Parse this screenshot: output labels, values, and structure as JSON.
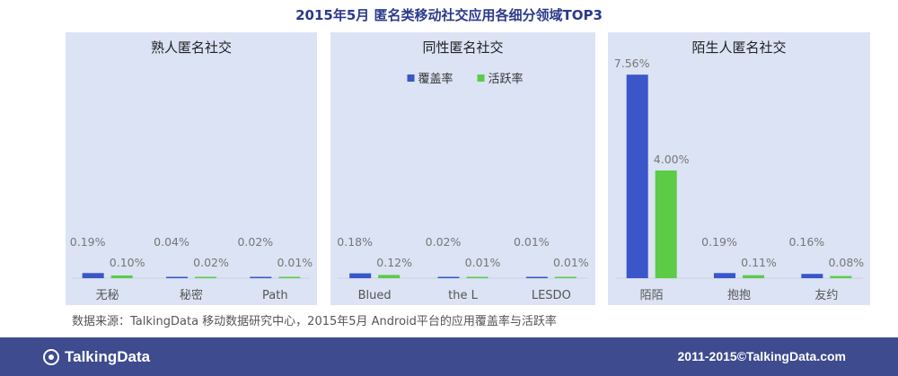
{
  "title": "2015年5月 匿名类移动社交应用各细分领域TOP3",
  "source": "数据来源：TalkingData 移动数据研究中心，2015年5月 Android平台的应用覆盖率与活跃率",
  "footer": {
    "logo": "TalkingData",
    "copyright": "2011-2015©TalkingData.com"
  },
  "colors": {
    "coverage": "#3a56c8",
    "activity": "#5ccb45",
    "panel": "#dbe3f4",
    "axis_text": "#555555",
    "value_text": "#777777"
  },
  "chart_data": [
    {
      "type": "bar",
      "title": "熟人匿名社交",
      "categories": [
        "无秘",
        "秘密",
        "Path"
      ],
      "series": [
        {
          "name": "覆盖率",
          "values": [
            0.19,
            0.04,
            0.02
          ],
          "labels": [
            "0.19%",
            "0.04%",
            "0.02%"
          ]
        },
        {
          "name": "活跃率",
          "values": [
            0.1,
            0.02,
            0.01
          ],
          "labels": [
            "0.10%",
            "0.02%",
            "0.01%"
          ]
        }
      ],
      "ylim": [
        0,
        8
      ],
      "legend": null
    },
    {
      "type": "bar",
      "title": "同性匿名社交",
      "categories": [
        "Blued",
        "the L",
        "LESDO"
      ],
      "series": [
        {
          "name": "覆盖率",
          "values": [
            0.18,
            0.02,
            0.01
          ],
          "labels": [
            "0.18%",
            "0.02%",
            "0.01%"
          ]
        },
        {
          "name": "活跃率",
          "values": [
            0.12,
            0.01,
            0.01
          ],
          "labels": [
            "0.12%",
            "0.01%",
            "0.01%"
          ]
        }
      ],
      "ylim": [
        0,
        8
      ],
      "legend": "top-center"
    },
    {
      "type": "bar",
      "title": "陌生人匿名社交",
      "categories": [
        "陌陌",
        "抱抱",
        "友约"
      ],
      "series": [
        {
          "name": "覆盖率",
          "values": [
            7.56,
            0.19,
            0.16
          ],
          "labels": [
            "7.56%",
            "0.19%",
            "0.16%"
          ]
        },
        {
          "name": "活跃率",
          "values": [
            4.0,
            0.11,
            0.08
          ],
          "labels": [
            "4.00%",
            "0.11%",
            "0.08%"
          ]
        }
      ],
      "ylim": [
        0,
        8
      ],
      "legend": null
    }
  ]
}
